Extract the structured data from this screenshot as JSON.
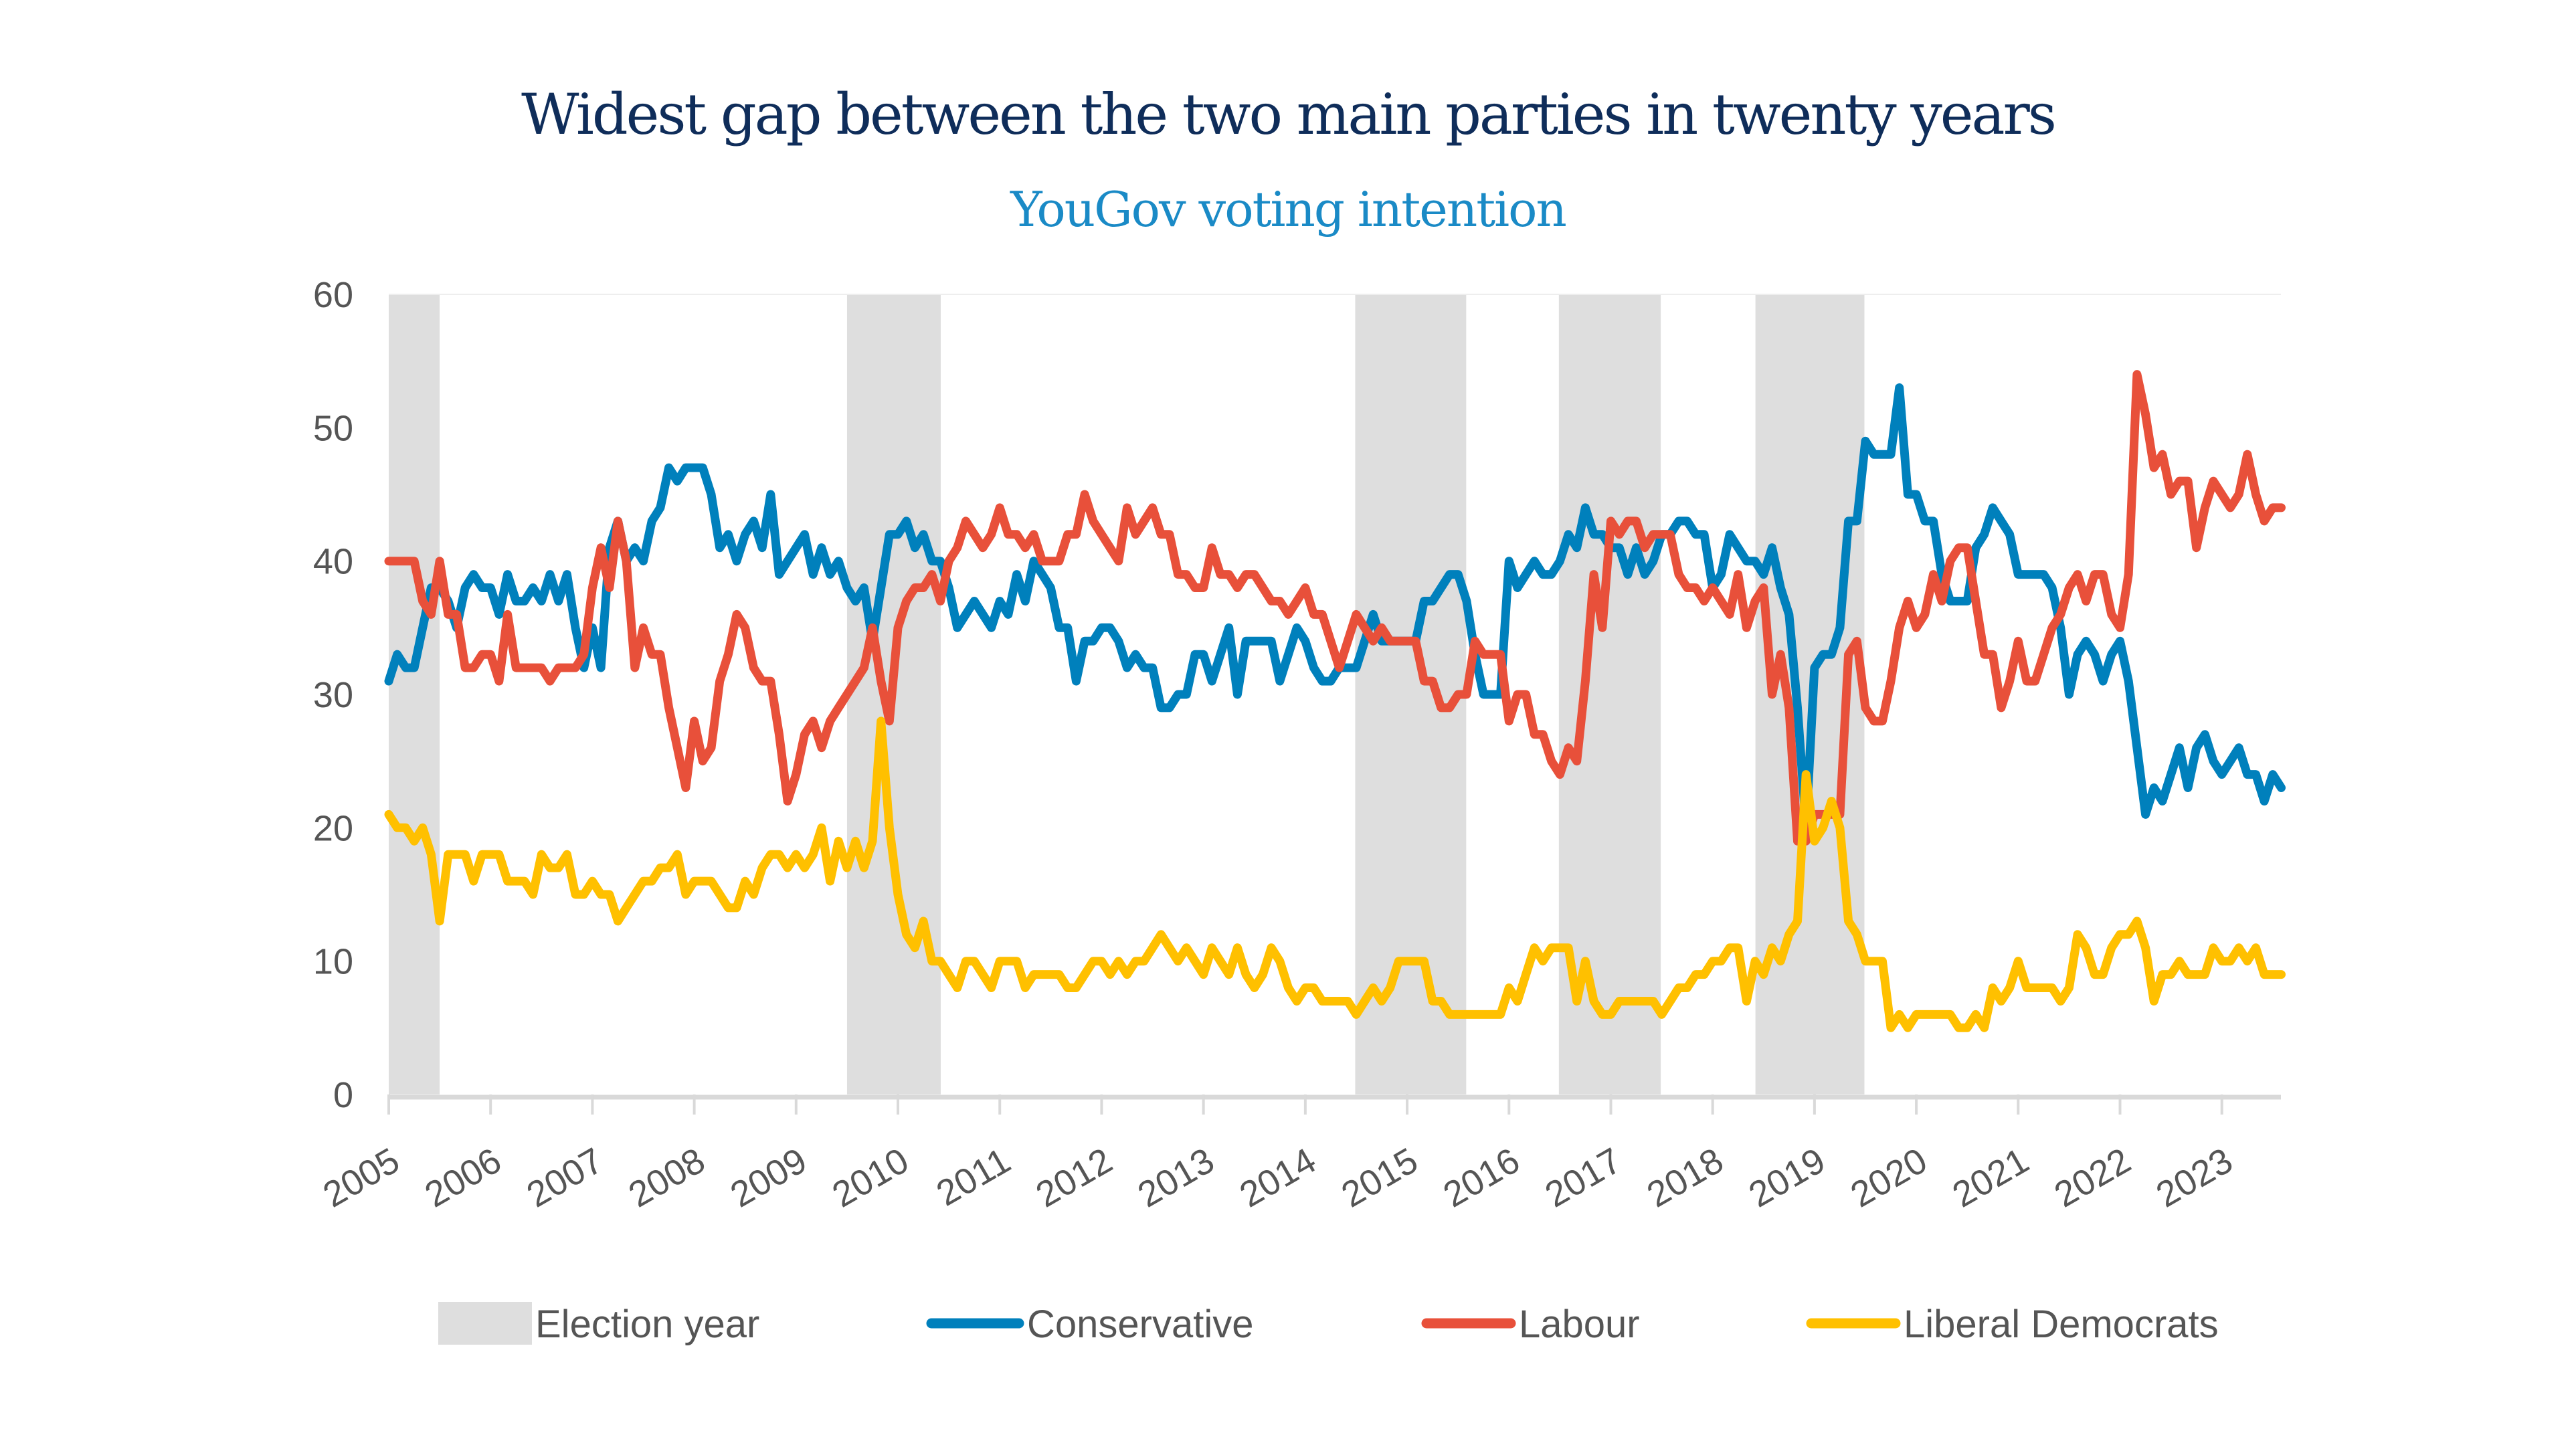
{
  "chart_data": {
    "type": "line",
    "title": "Widest gap between the two main parties in twenty years",
    "subtitle": "YouGov voting intention",
    "xlabel": "",
    "ylabel": "",
    "x_start": 2005,
    "x_step_months": 1,
    "xlim": [
      2005,
      2023.58
    ],
    "ylim": [
      0,
      60
    ],
    "yticks": [
      0,
      10,
      20,
      30,
      40,
      50,
      60
    ],
    "ytick_labels": [
      "0",
      "10",
      "20",
      "30",
      "40",
      "50",
      "60"
    ],
    "xticks": [
      2005,
      2006,
      2007,
      2008,
      2009,
      2010,
      2011,
      2012,
      2013,
      2014,
      2015,
      2016,
      2017,
      2018,
      2019,
      2020,
      2021,
      2022,
      2023
    ],
    "xtick_labels": [
      "2005",
      "2006",
      "2007",
      "2008",
      "2009",
      "2010",
      "2011",
      "2012",
      "2013",
      "2014",
      "2015",
      "2016",
      "2017",
      "2018",
      "2019",
      "2020",
      "2021",
      "2022",
      "2023"
    ],
    "grid": false,
    "legend_position": "bottom",
    "election_bands": [
      {
        "start": 2005.0,
        "end": 2005.5
      },
      {
        "start": 2009.5,
        "end": 2010.42
      },
      {
        "start": 2014.49,
        "end": 2015.58
      },
      {
        "start": 2016.49,
        "end": 2017.49
      },
      {
        "start": 2018.42,
        "end": 2019.49
      }
    ],
    "band_label": "Election year",
    "band_color": "#DEDEDE",
    "series": [
      {
        "name": "Conservative",
        "color": "#0080BC",
        "values": [
          31,
          33,
          32,
          32,
          35,
          38,
          38,
          37,
          35,
          38,
          39,
          38,
          38,
          36,
          39,
          37,
          37,
          38,
          37,
          39,
          37,
          39,
          35,
          32,
          35,
          32,
          41,
          43,
          40,
          41,
          40,
          43,
          44,
          47,
          46,
          47,
          47,
          47,
          45,
          41,
          42,
          40,
          42,
          43,
          41,
          45,
          39,
          40,
          41,
          42,
          39,
          41,
          39,
          40,
          38,
          37,
          38,
          34,
          38,
          42,
          42,
          43,
          41,
          42,
          40,
          40,
          38,
          35,
          36,
          37,
          36,
          35,
          37,
          36,
          39,
          37,
          40,
          39,
          38,
          35,
          35,
          31,
          34,
          34,
          35,
          35,
          34,
          32,
          33,
          32,
          32,
          29,
          29,
          30,
          30,
          33,
          33,
          31,
          33,
          35,
          30,
          34,
          34,
          34,
          34,
          31,
          33,
          35,
          34,
          32,
          31,
          31,
          32,
          32,
          32,
          34,
          36,
          34,
          34,
          34,
          34,
          34,
          37,
          37,
          38,
          39,
          39,
          37,
          33,
          30,
          30,
          30,
          40,
          38,
          39,
          40,
          39,
          39,
          40,
          42,
          41,
          44,
          42,
          42,
          41,
          41,
          39,
          41,
          39,
          40,
          42,
          42,
          43,
          43,
          42,
          42,
          38,
          39,
          42,
          41,
          40,
          40,
          39,
          41,
          38,
          36,
          29,
          20,
          32,
          33,
          33,
          35,
          43,
          43,
          49,
          48,
          48,
          48,
          53,
          45,
          45,
          43,
          43,
          39,
          37,
          37,
          37,
          41,
          42,
          44,
          43,
          42,
          39,
          39,
          39,
          39,
          38,
          35,
          30,
          33,
          34,
          33,
          31,
          33,
          34,
          31,
          26,
          21,
          23,
          22,
          24,
          26,
          23,
          26,
          27,
          25,
          24,
          25,
          26,
          24,
          24,
          22,
          24,
          23
        ]
      },
      {
        "name": "Labour",
        "color": "#E8503A",
        "values": [
          40,
          40,
          40,
          40,
          37,
          36,
          40,
          36,
          36,
          32,
          32,
          33,
          33,
          31,
          36,
          32,
          32,
          32,
          32,
          31,
          32,
          32,
          32,
          33,
          38,
          41,
          38,
          43,
          40,
          32,
          35,
          33,
          33,
          29,
          26,
          23,
          28,
          25,
          26,
          31,
          33,
          36,
          35,
          32,
          31,
          31,
          27,
          22,
          24,
          27,
          28,
          26,
          28,
          29,
          30,
          31,
          32,
          35,
          31,
          28,
          35,
          37,
          38,
          38,
          39,
          37,
          40,
          41,
          43,
          42,
          41,
          42,
          44,
          42,
          42,
          41,
          42,
          40,
          40,
          40,
          42,
          42,
          45,
          43,
          42,
          41,
          40,
          44,
          42,
          43,
          44,
          42,
          42,
          39,
          39,
          38,
          38,
          41,
          39,
          39,
          38,
          39,
          39,
          38,
          37,
          37,
          36,
          37,
          38,
          36,
          36,
          34,
          32,
          34,
          36,
          35,
          34,
          35,
          34,
          34,
          34,
          34,
          31,
          31,
          29,
          29,
          30,
          30,
          34,
          33,
          33,
          33,
          28,
          30,
          30,
          27,
          27,
          25,
          24,
          26,
          25,
          31,
          39,
          35,
          43,
          42,
          43,
          43,
          41,
          42,
          42,
          42,
          39,
          38,
          38,
          37,
          38,
          37,
          36,
          39,
          35,
          37,
          38,
          30,
          33,
          29,
          19,
          19,
          21,
          21,
          21,
          21,
          33,
          34,
          29,
          28,
          28,
          31,
          35,
          37,
          35,
          36,
          39,
          37,
          40,
          41,
          41,
          37,
          33,
          33,
          29,
          31,
          34,
          31,
          31,
          33,
          35,
          36,
          38,
          39,
          37,
          39,
          39,
          36,
          35,
          39,
          54,
          51,
          47,
          48,
          45,
          46,
          46,
          41,
          44,
          46,
          45,
          44,
          45,
          48,
          45,
          43,
          44,
          44
        ]
      },
      {
        "name": "Liberal Democrats",
        "color": "#FFC000",
        "values": [
          21,
          20,
          20,
          19,
          20,
          18,
          13,
          18,
          18,
          18,
          16,
          18,
          18,
          18,
          16,
          16,
          16,
          15,
          18,
          17,
          17,
          18,
          15,
          15,
          16,
          15,
          15,
          13,
          14,
          15,
          16,
          16,
          17,
          17,
          18,
          15,
          16,
          16,
          16,
          15,
          14,
          14,
          16,
          15,
          17,
          18,
          18,
          17,
          18,
          17,
          18,
          20,
          16,
          19,
          17,
          19,
          17,
          19,
          28,
          20,
          15,
          12,
          11,
          13,
          10,
          10,
          9,
          8,
          10,
          10,
          9,
          8,
          10,
          10,
          10,
          8,
          9,
          9,
          9,
          9,
          8,
          8,
          9,
          10,
          10,
          9,
          10,
          9,
          10,
          10,
          11,
          12,
          11,
          10,
          11,
          10,
          9,
          11,
          10,
          9,
          11,
          9,
          8,
          9,
          11,
          10,
          8,
          7,
          8,
          8,
          7,
          7,
          7,
          7,
          6,
          7,
          8,
          7,
          8,
          10,
          10,
          10,
          10,
          7,
          7,
          6,
          6,
          6,
          6,
          6,
          6,
          6,
          8,
          7,
          9,
          11,
          10,
          11,
          11,
          11,
          7,
          10,
          7,
          6,
          6,
          7,
          7,
          7,
          7,
          7,
          6,
          7,
          8,
          8,
          9,
          9,
          10,
          10,
          11,
          11,
          7,
          10,
          9,
          11,
          10,
          12,
          13,
          24,
          19,
          20,
          22,
          20,
          13,
          12,
          10,
          10,
          10,
          5,
          6,
          5,
          6,
          6,
          6,
          6,
          6,
          5,
          5,
          6,
          5,
          8,
          7,
          8,
          10,
          8,
          8,
          8,
          8,
          7,
          8,
          12,
          11,
          9,
          9,
          11,
          12,
          12,
          13,
          11,
          7,
          9,
          9,
          10,
          9,
          9,
          9,
          11,
          10,
          10,
          11,
          10,
          11,
          9,
          9,
          9
        ]
      }
    ]
  },
  "legend": {
    "items": [
      {
        "label": "Election year",
        "kind": "band",
        "color": "#DEDEDE"
      },
      {
        "label": "Conservative",
        "kind": "line",
        "color": "#0080BC"
      },
      {
        "label": "Labour",
        "kind": "line",
        "color": "#E8503A"
      },
      {
        "label": "Liberal Democrats",
        "kind": "line",
        "color": "#FFC000"
      }
    ]
  }
}
